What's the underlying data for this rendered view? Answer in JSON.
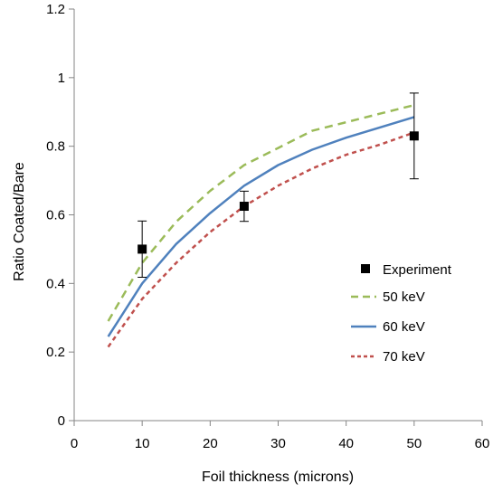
{
  "chart_data": {
    "type": "scatter",
    "title": "",
    "xlabel": "Foil thickness (microns)",
    "ylabel": "Ratio Coated/Bare",
    "xlim": [
      0,
      60
    ],
    "ylim": [
      0,
      1.2
    ],
    "xticks": [
      0,
      10,
      20,
      30,
      40,
      50,
      60
    ],
    "yticks": [
      0,
      0.2,
      0.4,
      0.6,
      0.8,
      1,
      1.2
    ],
    "xtick_labels": [
      "0",
      "10",
      "20",
      "30",
      "40",
      "50",
      "60"
    ],
    "ytick_labels": [
      "0",
      "0.2",
      "0.4",
      "0.6",
      "0.8",
      "1",
      "1.2"
    ],
    "grid": false,
    "legend_position": "lower-right",
    "series": [
      {
        "name": "Experiment",
        "kind": "points",
        "color": "#000000",
        "marker": "square",
        "points": [
          {
            "x": 10,
            "y": 0.5,
            "err": 0.082
          },
          {
            "x": 25,
            "y": 0.625,
            "err": 0.044
          },
          {
            "x": 50,
            "y": 0.83,
            "err": 0.125
          }
        ]
      },
      {
        "name": "50 keV",
        "kind": "line",
        "color": "#9BBB59",
        "dash": "dashed",
        "x": [
          5,
          10,
          15,
          20,
          25,
          30,
          35,
          40,
          45,
          50
        ],
        "y": [
          0.29,
          0.46,
          0.58,
          0.67,
          0.745,
          0.795,
          0.845,
          0.87,
          0.895,
          0.92
        ]
      },
      {
        "name": "60 keV",
        "kind": "line",
        "color": "#4F81BD",
        "dash": "solid",
        "x": [
          5,
          10,
          15,
          20,
          25,
          30,
          35,
          40,
          45,
          50
        ],
        "y": [
          0.245,
          0.4,
          0.515,
          0.605,
          0.685,
          0.745,
          0.79,
          0.825,
          0.855,
          0.885
        ]
      },
      {
        "name": "70 keV",
        "kind": "line",
        "color": "#C0504D",
        "dash": "dotted",
        "x": [
          5,
          10,
          15,
          20,
          25,
          30,
          35,
          40,
          45,
          50
        ],
        "y": [
          0.215,
          0.355,
          0.46,
          0.55,
          0.625,
          0.685,
          0.735,
          0.775,
          0.805,
          0.84
        ]
      }
    ]
  }
}
